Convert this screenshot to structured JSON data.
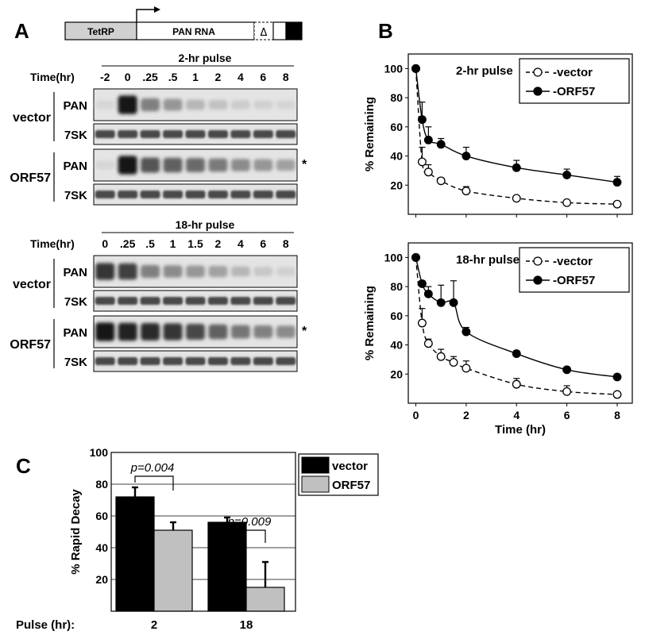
{
  "panel_a": {
    "label": "A",
    "construct": {
      "promoter": "TetRP",
      "gene": "PAN RNA",
      "deletion": "Δ"
    },
    "blot1": {
      "title": "2-hr pulse",
      "time_label": "Time(hr)",
      "times": [
        "-2",
        "0",
        ".25",
        ".5",
        "1",
        "2",
        "4",
        "6",
        "8"
      ],
      "groups": [
        {
          "name": "vector",
          "rows": [
            "PAN",
            "7SK"
          ]
        },
        {
          "name": "ORF57",
          "rows": [
            "PAN",
            "7SK"
          ]
        }
      ],
      "asterisk": "*",
      "pan_intensity": {
        "vector": [
          0.05,
          0.95,
          0.45,
          0.35,
          0.2,
          0.15,
          0.1,
          0.08,
          0.06
        ],
        "orf57": [
          0.05,
          0.95,
          0.65,
          0.6,
          0.55,
          0.48,
          0.4,
          0.35,
          0.3
        ]
      }
    },
    "blot2": {
      "title": "18-hr pulse",
      "time_label": "Time(hr)",
      "times": [
        "0",
        ".25",
        ".5",
        "1",
        "1.5",
        "2",
        "4",
        "6",
        "8"
      ],
      "groups": [
        {
          "name": "vector",
          "rows": [
            "PAN",
            "7SK"
          ]
        },
        {
          "name": "ORF57",
          "rows": [
            "PAN",
            "7SK"
          ]
        }
      ],
      "asterisk": "*",
      "pan_intensity": {
        "vector": [
          0.8,
          0.75,
          0.45,
          0.4,
          0.35,
          0.3,
          0.2,
          0.12,
          0.08
        ],
        "orf57": [
          0.95,
          0.9,
          0.85,
          0.8,
          0.72,
          0.6,
          0.5,
          0.45,
          0.4
        ]
      }
    }
  },
  "chart_data": [
    {
      "type": "line",
      "panel": "B",
      "title": "2-hr pulse",
      "xlabel": "",
      "ylabel": "% Remaining",
      "xlim": [
        -0.3,
        8.6
      ],
      "ylim": [
        0,
        110
      ],
      "xticks": [
        0,
        2,
        4,
        6,
        8
      ],
      "yticks": [
        20,
        40,
        60,
        80,
        100
      ],
      "legend_position": "top-right",
      "series": [
        {
          "name": "vector",
          "marker": "open-circle",
          "dash": true,
          "x": [
            0,
            0.25,
            0.5,
            1,
            2,
            4,
            6,
            8
          ],
          "y": [
            100,
            36,
            29,
            23,
            16,
            11,
            8,
            7
          ],
          "err": [
            0,
            10,
            5,
            2,
            3,
            1,
            1,
            1
          ]
        },
        {
          "name": "ORF57",
          "marker": "filled-circle",
          "dash": false,
          "x": [
            0,
            0.25,
            0.5,
            1,
            2,
            4,
            6,
            8
          ],
          "y": [
            100,
            65,
            51,
            48,
            40,
            32,
            27,
            22
          ],
          "err": [
            0,
            12,
            9,
            4,
            6,
            5,
            4,
            4
          ]
        }
      ]
    },
    {
      "type": "line",
      "panel": "",
      "title": "18-hr pulse",
      "xlabel": "Time (hr)",
      "ylabel": "% Remaining",
      "xlim": [
        -0.3,
        8.6
      ],
      "ylim": [
        0,
        110
      ],
      "xticks": [
        0,
        2,
        4,
        6,
        8
      ],
      "yticks": [
        20,
        40,
        60,
        80,
        100
      ],
      "legend_position": "top-right",
      "series": [
        {
          "name": "vector",
          "marker": "open-circle",
          "dash": true,
          "x": [
            0,
            0.25,
            0.5,
            1,
            1.5,
            2,
            4,
            6,
            8
          ],
          "y": [
            100,
            55,
            41,
            32,
            28,
            24,
            13,
            8,
            6
          ],
          "err": [
            0,
            10,
            3,
            5,
            4,
            5,
            4,
            4,
            1
          ]
        },
        {
          "name": "ORF57",
          "marker": "filled-circle",
          "dash": false,
          "x": [
            0,
            0.25,
            0.5,
            1,
            1.5,
            2,
            4,
            6,
            8
          ],
          "y": [
            100,
            82,
            75,
            69,
            69,
            49,
            34,
            23,
            18
          ],
          "err": [
            0,
            2,
            5,
            12,
            15,
            3,
            2,
            1,
            1
          ]
        }
      ]
    },
    {
      "type": "bar",
      "panel": "C",
      "title": "",
      "xlabel": "Pulse (hr):",
      "ylabel": "% Rapid Decay",
      "categories": [
        "2",
        "18"
      ],
      "ylim": [
        0,
        100
      ],
      "yticks": [
        20,
        40,
        60,
        80,
        100
      ],
      "grid": true,
      "legend_position": "right",
      "series": [
        {
          "name": "vector",
          "color": "#000000",
          "values": [
            72,
            56
          ],
          "err": [
            6,
            3
          ]
        },
        {
          "name": "ORF57",
          "color": "#c0c0c0",
          "values": [
            51,
            15
          ],
          "err": [
            5,
            16
          ]
        }
      ],
      "annotations": [
        "p=0.004",
        "p=0.009"
      ]
    }
  ]
}
